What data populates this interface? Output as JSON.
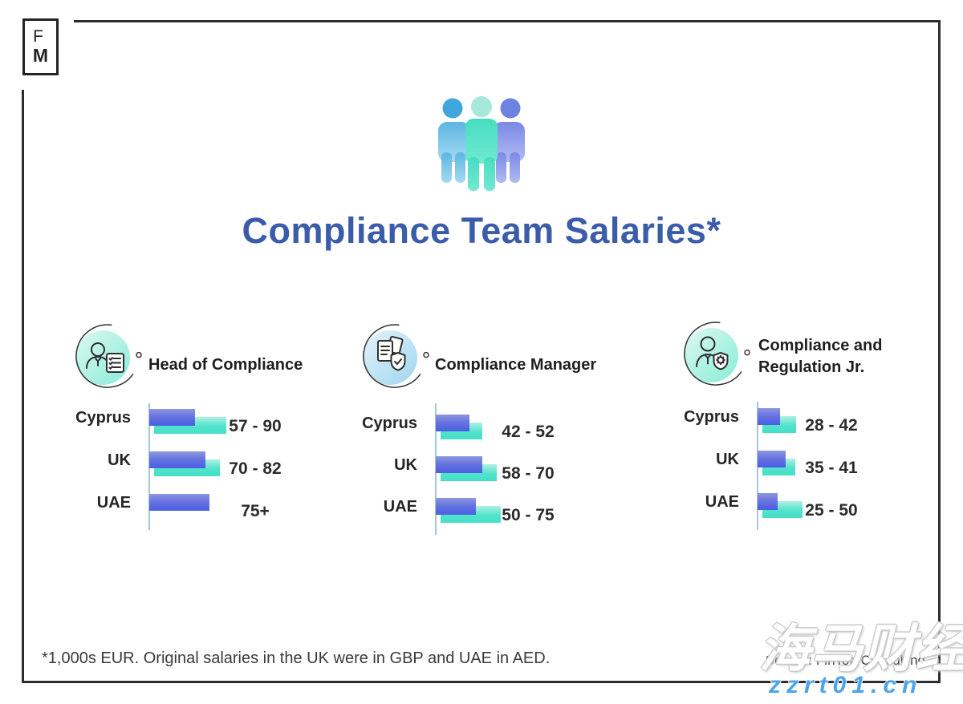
{
  "logo": {
    "top": "F",
    "bottom": "M"
  },
  "header": {
    "title": "Compliance Team Salaries*",
    "title_color": "#3b5ca9",
    "team_icon": "team-people-icon"
  },
  "sections": [
    {
      "title": "Head of Compliance",
      "icon": "person-checklist-icon",
      "icon_bg": "mint",
      "rows": [
        {
          "country": "Cyprus",
          "label": "57 - 90",
          "min": 57,
          "max": 90
        },
        {
          "country": "UK",
          "label": "70 - 82",
          "min": 70,
          "max": 82
        },
        {
          "country": "UAE",
          "label": "75+",
          "min": 75,
          "max": null
        }
      ]
    },
    {
      "title": "Compliance Manager",
      "icon": "documents-shield-icon",
      "icon_bg": "blue",
      "rows": [
        {
          "country": "Cyprus",
          "label": "42 - 52",
          "min": 42,
          "max": 52
        },
        {
          "country": "UK",
          "label": "58 - 70",
          "min": 58,
          "max": 70
        },
        {
          "country": "UAE",
          "label": "50 - 75",
          "min": 50,
          "max": 75
        }
      ]
    },
    {
      "title": "Compliance and Regulation Jr.",
      "title_line1": "Compliance and",
      "title_line2": "Regulation Jr.",
      "icon": "person-shield-icon",
      "icon_bg": "mint",
      "rows": [
        {
          "country": "Cyprus",
          "label": "28 - 42",
          "min": 28,
          "max": 42
        },
        {
          "country": "UK",
          "label": "35 - 41",
          "min": 35,
          "max": 41
        },
        {
          "country": "UAE",
          "label": "25 - 50",
          "min": 25,
          "max": 50
        }
      ]
    }
  ],
  "footer": {
    "footnote": "*1,000s EUR. Original salaries in the UK were in GBP and UAE in AED.",
    "source": "Source: FinTop Consulting"
  },
  "watermark": {
    "cjk": "海马财经",
    "url": "zzrt01.cn",
    "url_color": "#4da4ea"
  },
  "colors": {
    "title_blue": "#3b5ca9",
    "bar_min_top": "#8d97de",
    "bar_min_bottom": "#4a5ee3",
    "bar_max_top": "#aef0e3",
    "bar_max_bottom": "#45dfc6",
    "axis": "#a3c6e0",
    "frame": "#2d2d2d"
  },
  "chart_data": [
    {
      "type": "bar",
      "orientation": "horizontal",
      "title": "Head of Compliance",
      "categories": [
        "Cyprus",
        "UK",
        "UAE"
      ],
      "series": [
        {
          "name": "salary-min",
          "values": [
            57,
            70,
            75
          ]
        },
        {
          "name": "salary-max",
          "values": [
            90,
            82,
            null
          ]
        }
      ],
      "value_labels": [
        "57 - 90",
        "70 - 82",
        "75+"
      ],
      "unit": "1,000s EUR",
      "xlim": [
        0,
        100
      ],
      "grid": false,
      "legend": "none"
    },
    {
      "type": "bar",
      "orientation": "horizontal",
      "title": "Compliance Manager",
      "categories": [
        "Cyprus",
        "UK",
        "UAE"
      ],
      "series": [
        {
          "name": "salary-min",
          "values": [
            42,
            58,
            50
          ]
        },
        {
          "name": "salary-max",
          "values": [
            52,
            70,
            75
          ]
        }
      ],
      "value_labels": [
        "42 - 52",
        "58 - 70",
        "50 - 75"
      ],
      "unit": "1,000s EUR",
      "xlim": [
        0,
        100
      ],
      "grid": false,
      "legend": "none"
    },
    {
      "type": "bar",
      "orientation": "horizontal",
      "title": "Compliance and Regulation Jr.",
      "categories": [
        "Cyprus",
        "UK",
        "UAE"
      ],
      "series": [
        {
          "name": "salary-min",
          "values": [
            28,
            35,
            25
          ]
        },
        {
          "name": "salary-max",
          "values": [
            42,
            41,
            50
          ]
        }
      ],
      "value_labels": [
        "28 - 42",
        "35 - 41",
        "25 - 50"
      ],
      "unit": "1,000s EUR",
      "xlim": [
        0,
        100
      ],
      "grid": false,
      "legend": "none"
    }
  ]
}
